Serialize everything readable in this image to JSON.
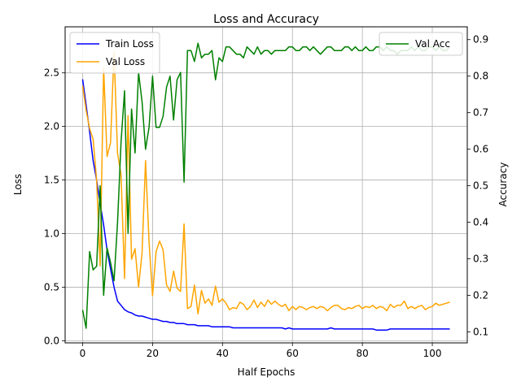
{
  "chart_data": {
    "type": "line",
    "title": "Loss and Accuracy",
    "xlabel": "Half Epochs",
    "ylabel_left": "Loss",
    "ylabel_right": "Accuracy",
    "xlim": [
      -5,
      110
    ],
    "ylim_left": [
      -0.02,
      2.93
    ],
    "ylim_right": [
      0.07,
      0.935
    ],
    "xticks": [
      0,
      20,
      40,
      60,
      80,
      100
    ],
    "xtick_labels": [
      "0",
      "20",
      "40",
      "60",
      "80",
      "100"
    ],
    "yticks_left": [
      0.0,
      0.5,
      1.0,
      1.5,
      2.0,
      2.5
    ],
    "ytick_labels_left": [
      "0.0",
      "0.5",
      "1.0",
      "1.5",
      "2.0",
      "2.5"
    ],
    "yticks_right": [
      0.1,
      0.2,
      0.3,
      0.4,
      0.5,
      0.6,
      0.7,
      0.8,
      0.9
    ],
    "ytick_labels_right": [
      "0.1",
      "0.2",
      "0.3",
      "0.4",
      "0.5",
      "0.6",
      "0.7",
      "0.8",
      "0.9"
    ],
    "grid": true,
    "legend_left_placement": "upper-left",
    "legend_right_placement": "upper-right",
    "series": [
      {
        "name": "Train Loss",
        "axis": "left",
        "color": "#0000ff",
        "x": [
          0,
          1,
          2,
          3,
          4,
          5,
          6,
          7,
          8,
          9,
          10,
          11,
          12,
          13,
          14,
          15,
          16,
          17,
          18,
          19,
          20,
          21,
          22,
          23,
          24,
          25,
          26,
          27,
          28,
          29,
          30,
          31,
          32,
          33,
          34,
          35,
          36,
          37,
          38,
          39,
          40,
          41,
          42,
          43,
          44,
          45,
          46,
          47,
          48,
          49,
          50,
          51,
          52,
          53,
          54,
          55,
          56,
          57,
          58,
          59,
          60,
          61,
          62,
          63,
          64,
          65,
          66,
          67,
          68,
          69,
          70,
          71,
          72,
          73,
          74,
          75,
          76,
          77,
          78,
          79,
          80,
          81,
          82,
          83,
          84,
          85,
          86,
          87,
          88,
          89,
          90,
          91,
          92,
          93,
          94,
          95,
          96,
          97,
          98,
          99,
          100,
          101,
          102,
          103,
          104,
          105
        ],
        "values": [
          2.44,
          2.2,
          1.95,
          1.68,
          1.5,
          1.28,
          1.08,
          0.85,
          0.67,
          0.5,
          0.37,
          0.33,
          0.29,
          0.27,
          0.26,
          0.24,
          0.23,
          0.23,
          0.22,
          0.21,
          0.2,
          0.2,
          0.19,
          0.18,
          0.18,
          0.17,
          0.17,
          0.16,
          0.16,
          0.16,
          0.15,
          0.15,
          0.15,
          0.14,
          0.14,
          0.14,
          0.14,
          0.13,
          0.13,
          0.13,
          0.13,
          0.13,
          0.13,
          0.12,
          0.12,
          0.12,
          0.12,
          0.12,
          0.12,
          0.12,
          0.12,
          0.12,
          0.12,
          0.12,
          0.12,
          0.12,
          0.12,
          0.12,
          0.11,
          0.12,
          0.11,
          0.11,
          0.11,
          0.11,
          0.11,
          0.11,
          0.11,
          0.11,
          0.11,
          0.11,
          0.11,
          0.12,
          0.11,
          0.11,
          0.11,
          0.11,
          0.11,
          0.11,
          0.11,
          0.11,
          0.11,
          0.11,
          0.11,
          0.11,
          0.1,
          0.1,
          0.1,
          0.1,
          0.11,
          0.11,
          0.11,
          0.11,
          0.11,
          0.11,
          0.11,
          0.11,
          0.11,
          0.11,
          0.11,
          0.11,
          0.11,
          0.11,
          0.11,
          0.11,
          0.11,
          0.11
        ]
      },
      {
        "name": "Val Loss",
        "axis": "left",
        "color": "#ffa500",
        "x": [
          0,
          1,
          2,
          3,
          4,
          5,
          6,
          7,
          8,
          9,
          10,
          11,
          12,
          13,
          14,
          15,
          16,
          17,
          18,
          19,
          20,
          21,
          22,
          23,
          24,
          25,
          26,
          27,
          28,
          29,
          30,
          31,
          32,
          33,
          34,
          35,
          36,
          37,
          38,
          39,
          40,
          41,
          42,
          43,
          44,
          45,
          46,
          47,
          48,
          49,
          50,
          51,
          52,
          53,
          54,
          55,
          56,
          57,
          58,
          59,
          60,
          61,
          62,
          63,
          64,
          65,
          66,
          67,
          68,
          69,
          70,
          71,
          72,
          73,
          74,
          75,
          76,
          77,
          78,
          79,
          80,
          81,
          82,
          83,
          84,
          85,
          86,
          87,
          88,
          89,
          90,
          91,
          92,
          93,
          94,
          95,
          96,
          97,
          98,
          99,
          100,
          101,
          102,
          103,
          104,
          105
        ],
        "values": [
          2.38,
          2.15,
          1.98,
          1.88,
          1.5,
          0.7,
          2.55,
          1.72,
          1.85,
          2.7,
          1.75,
          1.55,
          0.58,
          2.1,
          0.76,
          0.86,
          0.5,
          0.82,
          1.68,
          0.92,
          0.42,
          0.83,
          0.93,
          0.85,
          0.52,
          0.46,
          0.65,
          0.49,
          0.46,
          1.09,
          0.3,
          0.32,
          0.52,
          0.25,
          0.47,
          0.35,
          0.39,
          0.33,
          0.51,
          0.36,
          0.39,
          0.35,
          0.29,
          0.31,
          0.3,
          0.36,
          0.34,
          0.29,
          0.32,
          0.38,
          0.31,
          0.36,
          0.32,
          0.38,
          0.34,
          0.37,
          0.34,
          0.32,
          0.34,
          0.28,
          0.32,
          0.29,
          0.32,
          0.31,
          0.29,
          0.31,
          0.32,
          0.3,
          0.32,
          0.31,
          0.28,
          0.31,
          0.33,
          0.33,
          0.3,
          0.29,
          0.31,
          0.3,
          0.32,
          0.33,
          0.3,
          0.32,
          0.31,
          0.33,
          0.3,
          0.32,
          0.31,
          0.28,
          0.34,
          0.31,
          0.33,
          0.33,
          0.37,
          0.3,
          0.32,
          0.3,
          0.32,
          0.33,
          0.29,
          0.31,
          0.32,
          0.35,
          0.33,
          0.34,
          0.35,
          0.36
        ]
      },
      {
        "name": "Val Acc",
        "axis": "right",
        "color": "#008000",
        "x": [
          0,
          1,
          2,
          3,
          4,
          5,
          6,
          7,
          8,
          9,
          10,
          11,
          12,
          13,
          14,
          15,
          16,
          17,
          18,
          19,
          20,
          21,
          22,
          23,
          24,
          25,
          26,
          27,
          28,
          29,
          30,
          31,
          32,
          33,
          34,
          35,
          36,
          37,
          38,
          39,
          40,
          41,
          42,
          43,
          44,
          45,
          46,
          47,
          48,
          49,
          50,
          51,
          52,
          53,
          54,
          55,
          56,
          57,
          58,
          59,
          60,
          61,
          62,
          63,
          64,
          65,
          66,
          67,
          68,
          69,
          70,
          71,
          72,
          73,
          74,
          75,
          76,
          77,
          78,
          79,
          80,
          81,
          82,
          83,
          84,
          85,
          86,
          87,
          88,
          89,
          90,
          91,
          92,
          93,
          94,
          95,
          96,
          97,
          98,
          99,
          100,
          101,
          102,
          103,
          104,
          105
        ],
        "values": [
          0.16,
          0.11,
          0.32,
          0.27,
          0.28,
          0.5,
          0.2,
          0.33,
          0.29,
          0.24,
          0.4,
          0.62,
          0.76,
          0.37,
          0.71,
          0.59,
          0.81,
          0.73,
          0.6,
          0.66,
          0.8,
          0.66,
          0.66,
          0.69,
          0.77,
          0.8,
          0.68,
          0.79,
          0.81,
          0.51,
          0.87,
          0.87,
          0.84,
          0.89,
          0.85,
          0.86,
          0.86,
          0.87,
          0.79,
          0.85,
          0.84,
          0.88,
          0.88,
          0.87,
          0.86,
          0.86,
          0.85,
          0.88,
          0.87,
          0.86,
          0.88,
          0.86,
          0.87,
          0.87,
          0.86,
          0.87,
          0.87,
          0.87,
          0.87,
          0.88,
          0.88,
          0.87,
          0.87,
          0.88,
          0.88,
          0.87,
          0.88,
          0.87,
          0.86,
          0.87,
          0.88,
          0.88,
          0.87,
          0.87,
          0.87,
          0.88,
          0.88,
          0.87,
          0.88,
          0.87,
          0.87,
          0.88,
          0.87,
          0.87,
          0.88,
          0.88,
          0.87,
          0.88,
          0.87,
          0.87,
          0.86,
          0.87,
          0.87,
          0.87,
          0.88,
          0.87,
          0.88,
          0.87,
          0.87,
          0.88,
          0.88,
          0.87,
          0.88,
          0.87,
          0.87,
          0.88
        ]
      }
    ]
  }
}
